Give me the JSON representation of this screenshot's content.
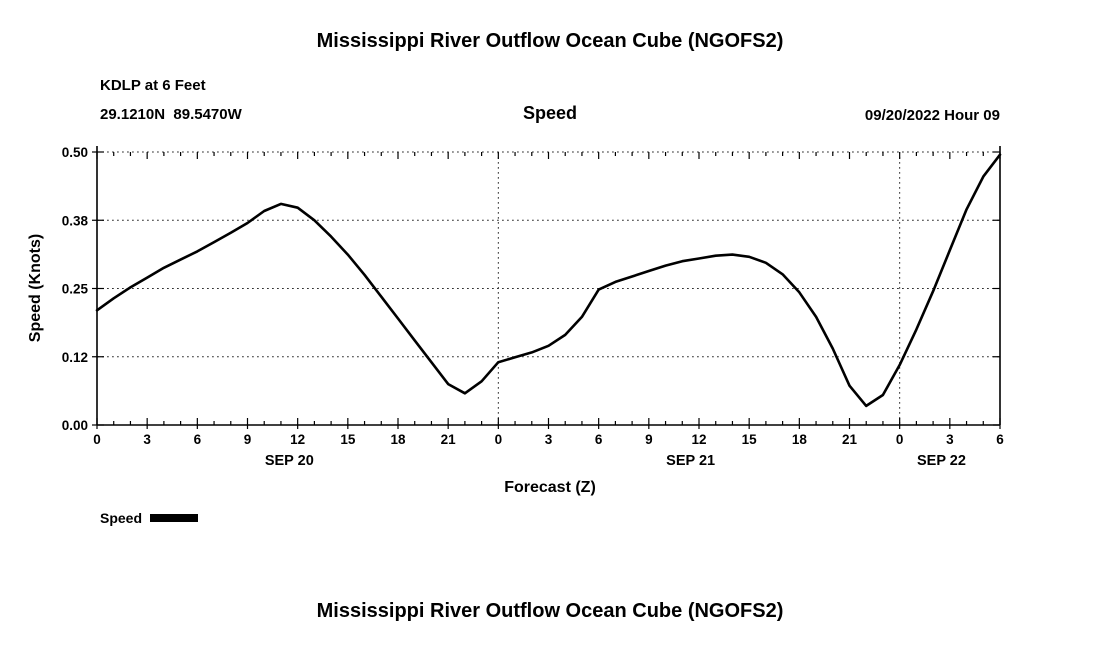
{
  "page": {
    "background": "#ffffff"
  },
  "header": {
    "title": "Mississippi River Outflow Ocean Cube (NGOFS2)",
    "station": "KDLP at 6 Feet",
    "coordinates": "29.1210N  89.5470W",
    "plot_title": "Speed",
    "datetime": "09/20/2022 Hour 09"
  },
  "legend": {
    "label": "Speed"
  },
  "footer": {
    "title": "Mississippi River Outflow Ocean Cube (NGOFS2)"
  },
  "chart_data": {
    "type": "line",
    "title": "Speed",
    "xlabel": "Forecast (Z)",
    "ylabel": "Speed (Knots)",
    "xlim": [
      0,
      54
    ],
    "ylim": [
      0,
      0.5
    ],
    "ytick_values": [
      0,
      0.125,
      0.25,
      0.375,
      0.5
    ],
    "ytick_labels": [
      "0.00",
      "0.12",
      "0.25",
      "0.38",
      "0.50"
    ],
    "xtick_step_major": 3,
    "xtick_step_minor": 1,
    "xtick_labels": [
      "0",
      "3",
      "6",
      "9",
      "12",
      "15",
      "18",
      "21",
      "0",
      "3",
      "6",
      "9",
      "12",
      "15",
      "18",
      "21",
      "0",
      "3",
      "6"
    ],
    "day_labels": [
      {
        "label": "SEP 20",
        "center_hour": 11.5
      },
      {
        "label": "SEP 21",
        "center_hour": 35.5
      },
      {
        "label": "SEP 22",
        "center_hour": 50.5
      }
    ],
    "day_boundaries": [
      24,
      48
    ],
    "grid": true,
    "legend_position": "below-left",
    "line_color": "#000000",
    "series": [
      {
        "name": "Speed",
        "x": [
          0,
          1,
          2,
          3,
          4,
          5,
          6,
          7,
          8,
          9,
          10,
          11,
          12,
          13,
          14,
          15,
          16,
          17,
          18,
          19,
          20,
          21,
          22,
          23,
          24,
          25,
          26,
          27,
          28,
          29,
          30,
          31,
          32,
          33,
          34,
          35,
          36,
          37,
          38,
          39,
          40,
          41,
          42,
          43,
          44,
          45,
          46,
          47,
          48,
          49,
          50,
          51,
          52,
          53,
          54
        ],
        "y": [
          0.21,
          0.232,
          0.252,
          0.27,
          0.288,
          0.303,
          0.318,
          0.335,
          0.352,
          0.37,
          0.392,
          0.405,
          0.398,
          0.375,
          0.345,
          0.312,
          0.275,
          0.235,
          0.195,
          0.155,
          0.115,
          0.075,
          0.058,
          0.08,
          0.115,
          0.124,
          0.133,
          0.145,
          0.165,
          0.198,
          0.248,
          0.262,
          0.272,
          0.282,
          0.292,
          0.3,
          0.305,
          0.31,
          0.312,
          0.308,
          0.297,
          0.276,
          0.243,
          0.198,
          0.14,
          0.072,
          0.035,
          0.055,
          0.11,
          0.175,
          0.245,
          0.32,
          0.395,
          0.455,
          0.495
        ]
      }
    ]
  }
}
